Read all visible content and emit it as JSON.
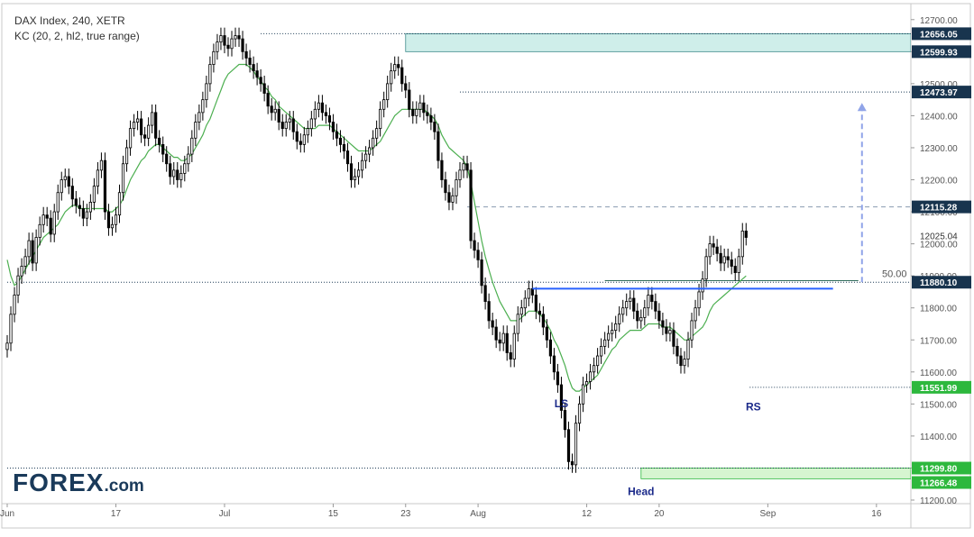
{
  "header": {
    "line1": "DAX Index, 240, XETR",
    "line2": "KC (20, 2, hl2, true range)"
  },
  "logo": {
    "main": "FOREX",
    "suffix": ".com"
  },
  "colors": {
    "up_candle": "#ffffff",
    "down_candle": "#000000",
    "keltner_mid": "#4caf50",
    "neckline": "#2962ff",
    "projection": "#90a4e8",
    "resistance_zone": "#cfeeea",
    "support_zone": "#d6f5d0",
    "price_label_dark": "#18344e",
    "price_label_green": "#2db83d"
  },
  "chart_data": {
    "type": "candlestick",
    "title": "DAX Index, 240, XETR",
    "indicator": "KC (20, 2, hl2, true range)",
    "ylim": [
      11200,
      12750
    ],
    "y_ticks": [
      11200,
      11300,
      11400,
      11500,
      11600,
      11700,
      11800,
      11900,
      12000,
      12100,
      12200,
      12300,
      12400,
      12500,
      12600,
      12700
    ],
    "x_ticks": [
      {
        "label": "Jun",
        "bar": 0
      },
      {
        "label": "17",
        "bar": 30
      },
      {
        "label": "Jul",
        "bar": 60
      },
      {
        "label": "15",
        "bar": 90
      },
      {
        "label": "23",
        "bar": 110
      },
      {
        "label": "Aug",
        "bar": 130
      },
      {
        "label": "12",
        "bar": 160
      },
      {
        "label": "20",
        "bar": 180
      },
      {
        "label": "Sep",
        "bar": 210
      },
      {
        "label": "16",
        "bar": 240
      }
    ],
    "closes": [
      11690,
      11780,
      11840,
      11900,
      11930,
      11960,
      12010,
      11940,
      12020,
      12060,
      12090,
      12080,
      12030,
      12100,
      12160,
      12200,
      12210,
      12180,
      12140,
      12120,
      12110,
      12080,
      12100,
      12130,
      12180,
      12230,
      12260,
      12100,
      12050,
      12060,
      12090,
      12160,
      12250,
      12300,
      12360,
      12380,
      12390,
      12340,
      12330,
      12370,
      12410,
      12330,
      12310,
      12280,
      12250,
      12210,
      12230,
      12200,
      12220,
      12250,
      12280,
      12330,
      12380,
      12410,
      12450,
      12500,
      12560,
      12600,
      12630,
      12650,
      12620,
      12610,
      12640,
      12650,
      12640,
      12600,
      12580,
      12560,
      12540,
      12520,
      12500,
      12470,
      12430,
      12410,
      12420,
      12380,
      12360,
      12380,
      12390,
      12350,
      12320,
      12310,
      12340,
      12360,
      12390,
      12420,
      12440,
      12410,
      12400,
      12380,
      12350,
      12330,
      12310,
      12290,
      12250,
      12200,
      12210,
      12230,
      12260,
      12280,
      12300,
      12330,
      12360,
      12420,
      12450,
      12500,
      12540,
      12560,
      12550,
      12500,
      12480,
      12420,
      12400,
      12420,
      12440,
      12410,
      12400,
      12380,
      12350,
      12260,
      12200,
      12160,
      12130,
      12150,
      12200,
      12230,
      12250,
      12230,
      12010,
      11980,
      11950,
      11870,
      11820,
      11760,
      11740,
      11700,
      11690,
      11720,
      11660,
      11640,
      11720,
      11780,
      11800,
      11830,
      11860,
      11840,
      11790,
      11780,
      11740,
      11700,
      11650,
      11600,
      11560,
      11480,
      11420,
      11320,
      11310,
      11440,
      11500,
      11560,
      11570,
      11600,
      11620,
      11650,
      11680,
      11700,
      11720,
      11730,
      11750,
      11780,
      11800,
      11820,
      11830,
      11790,
      11760,
      11770,
      11800,
      11840,
      11820,
      11790,
      11760,
      11740,
      11720,
      11730,
      11680,
      11650,
      11620,
      11640,
      11700,
      11760,
      11800,
      11850,
      11890,
      11960,
      12000,
      11990,
      11970,
      11940,
      11960,
      11950,
      11930,
      11910,
      11960,
      12040,
      12020
    ],
    "keltner_mid_start_bar": 0,
    "keltner_mid": [
      11950,
      11900,
      11870,
      11880,
      11900,
      11920,
      11940,
      11960,
      11980,
      12000,
      12020,
      12030,
      12040,
      12050,
      12060,
      12080,
      12100,
      12110,
      12120,
      12120,
      12110,
      12110,
      12110,
      12110,
      12110,
      12110,
      12110,
      12110,
      12100,
      12100,
      12110,
      12120,
      12140,
      12170,
      12200,
      12220,
      12240,
      12260,
      12270,
      12290,
      12300,
      12310,
      12310,
      12300,
      12290,
      12280,
      12270,
      12270,
      12260,
      12260,
      12270,
      12280,
      12300,
      12320,
      12340,
      12370,
      12390,
      12420,
      12450,
      12480,
      12510,
      12530,
      12540,
      12550,
      12560,
      12560,
      12560,
      12550,
      12540,
      12520,
      12510,
      12490,
      12480,
      12460,
      12450,
      12430,
      12420,
      12410,
      12400,
      12390,
      12380,
      12370,
      12360,
      12360,
      12360,
      12360,
      12370,
      12370,
      12370,
      12370,
      12360,
      12350,
      12340,
      12330,
      12320,
      12310,
      12300,
      12290,
      12290,
      12290,
      12290,
      12300,
      12310,
      12320,
      12340,
      12360,
      12380,
      12400,
      12410,
      12420,
      12420,
      12420,
      12420,
      12420,
      12420,
      12420,
      12410,
      12400,
      12390,
      12370,
      12340,
      12320,
      12300,
      12290,
      12280,
      12270,
      12260,
      12240,
      12190,
      12130,
      12070,
      12010,
      11960,
      11920,
      11880,
      11850,
      11820,
      11800,
      11780,
      11760,
      11760,
      11760,
      11770,
      11780,
      11790,
      11790,
      11790,
      11780,
      11770,
      11750,
      11730,
      11700,
      11680,
      11650,
      11620,
      11580,
      11550,
      11540,
      11540,
      11550,
      11560,
      11570,
      11580,
      11590,
      11610,
      11630,
      11650,
      11670,
      11680,
      11700,
      11710,
      11720,
      11730,
      11730,
      11730,
      11730,
      11740,
      11750,
      11750,
      11750,
      11750,
      11740,
      11740,
      11740,
      11730,
      11720,
      11710,
      11700,
      11700,
      11710,
      11720,
      11730,
      11740,
      11760,
      11790,
      11810,
      11820,
      11830,
      11840,
      11850,
      11860,
      11870,
      11880,
      11890,
      11900
    ],
    "annotations": {
      "price_labels": [
        {
          "value": 12656.05,
          "text": "12656.05",
          "style": "dark"
        },
        {
          "value": 12599.93,
          "text": "12599.93",
          "style": "dark"
        },
        {
          "value": 12473.97,
          "text": "12473.97",
          "style": "dark"
        },
        {
          "value": 12115.28,
          "text": "12115.28",
          "style": "dark"
        },
        {
          "value": 12025.04,
          "text": "12025.04",
          "style": "plain"
        },
        {
          "value": 11880.1,
          "text": "11880.10",
          "style": "dark"
        },
        {
          "value": 11551.99,
          "text": "11551.99",
          "style": "green"
        },
        {
          "value": 11299.8,
          "text": "11299.80",
          "style": "green"
        },
        {
          "value": 11266.48,
          "text": "11266.48",
          "style": "green"
        }
      ],
      "fib_label": "50.00",
      "pattern_labels": [
        {
          "text": "LS",
          "bar": 153,
          "value": 11490
        },
        {
          "text": "Head",
          "bar": 175,
          "value": 11215
        },
        {
          "text": "RS",
          "bar": 206,
          "value": 11480
        }
      ],
      "resistance_zone": {
        "from_bar": 110,
        "to_bar": 271,
        "low": 12599.93,
        "high": 12656.05
      },
      "support_zone": {
        "from_bar": 175,
        "to_bar": 271,
        "low": 11266.48,
        "high": 11299.8
      },
      "neckline": {
        "from_bar": 145,
        "to_bar": 228,
        "value": 11860
      },
      "projection": {
        "bar": 236,
        "from": 11880.1,
        "to": 12440
      }
    }
  }
}
